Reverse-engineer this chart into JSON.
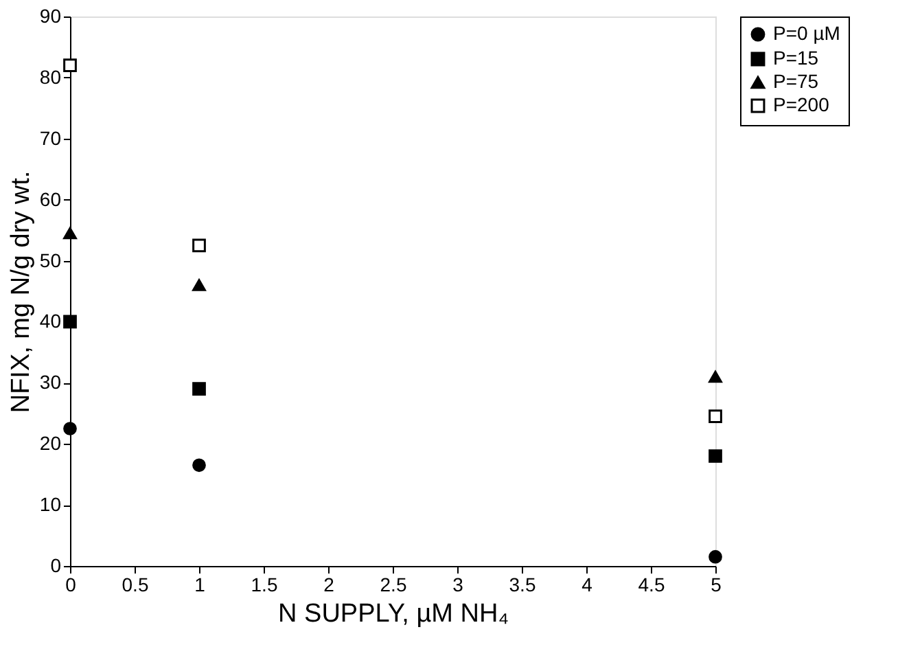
{
  "chart_data": {
    "type": "scatter",
    "xlabel": "N SUPPLY, µM NH₄",
    "ylabel": "NFIX, mg N/g dry wt.",
    "x": [
      0,
      1,
      5
    ],
    "series": [
      {
        "name": "P=0 µM",
        "color": "#000000",
        "marker": "circle",
        "values": [
          22.5,
          16.5,
          1.5
        ]
      },
      {
        "name": "P=15",
        "color": "#000000",
        "marker": "square",
        "values": [
          40,
          29,
          18
        ]
      },
      {
        "name": "P=75",
        "color": "#000000",
        "marker": "triangle",
        "values": [
          54.5,
          46,
          31
        ]
      },
      {
        "name": "P=200",
        "color": "#ffffff",
        "marker": "square",
        "values": [
          82,
          52.5,
          24.5
        ]
      }
    ],
    "xlim": [
      0,
      5
    ],
    "xticks": [
      0,
      0.5,
      1,
      1.5,
      2,
      2.5,
      3,
      3.5,
      4,
      4.5,
      5
    ],
    "ylim": [
      0,
      90
    ],
    "yticks": [
      0,
      10,
      20,
      30,
      40,
      50,
      60,
      70,
      80,
      90
    ],
    "grid": false,
    "legend": "top right"
  }
}
